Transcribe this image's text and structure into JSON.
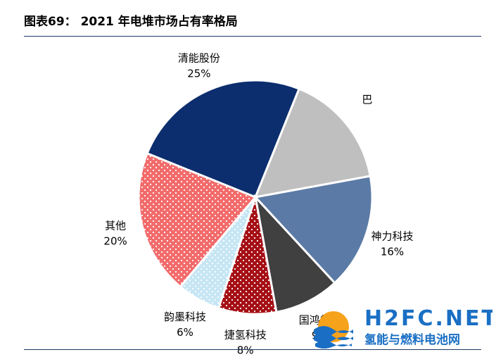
{
  "title": "图表69：  2021 年电堆市场占有率格局",
  "chart_data": {
    "type": "pie",
    "title": "图表69：  2021 年电堆市场占有率格局",
    "slices": [
      {
        "label": "清能股份",
        "value": 25,
        "value_label": "25%",
        "color": "#0c2e6e",
        "pattern": "solid"
      },
      {
        "label": "巴",
        "value": 16,
        "value_label": "",
        "color": "#bfbfbf",
        "pattern": "solid"
      },
      {
        "label": "神力科技",
        "value": 16,
        "value_label": "16%",
        "color": "#5b7aa6",
        "pattern": "solid"
      },
      {
        "label": "国鸿氢能",
        "value": 9,
        "value_label": "9%",
        "color": "#404040",
        "pattern": "solid"
      },
      {
        "label": "捷氢科技",
        "value": 8,
        "value_label": "8%",
        "color": "#a50f15",
        "pattern": "dots"
      },
      {
        "label": "韵墨科技",
        "value": 6,
        "value_label": "6%",
        "color": "#c6e6f4",
        "pattern": "dots"
      },
      {
        "label": "其他",
        "value": 20,
        "value_label": "20%",
        "color": "#f26b6b",
        "pattern": "dots"
      }
    ]
  },
  "watermark": {
    "main": "H2FC.NET",
    "sub": "氢能与燃料电池网"
  }
}
